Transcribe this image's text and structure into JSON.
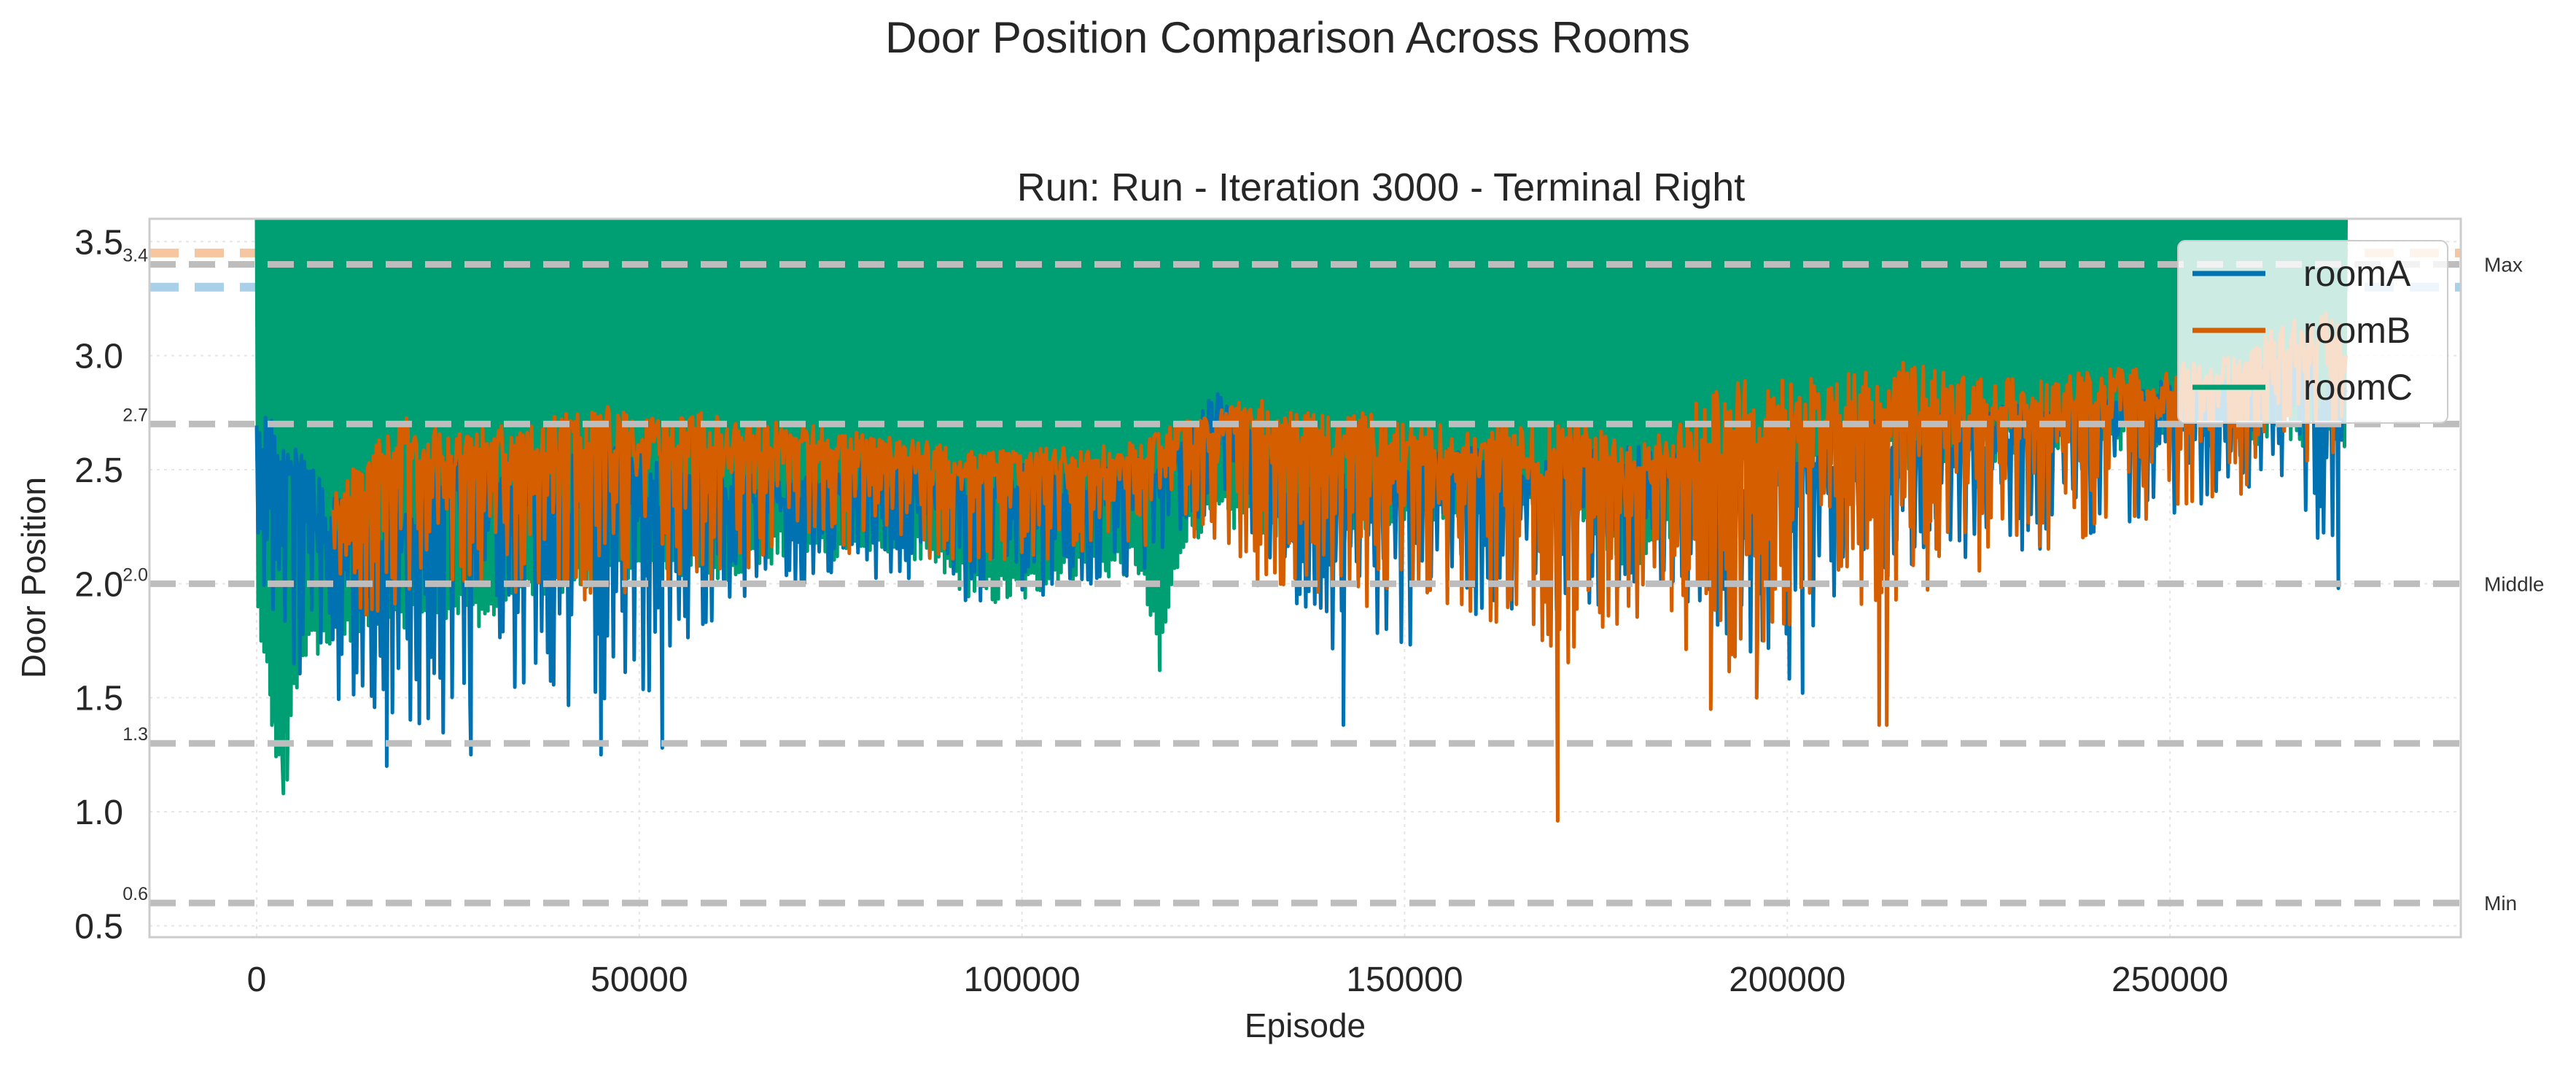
{
  "figure": {
    "suptitle": "Door Position Comparison Across Rooms"
  },
  "chart_data": {
    "type": "line",
    "title": "Run: Run - Iteration 3000 - Terminal Right",
    "xlabel": "Episode",
    "ylabel": "Door Position",
    "xlim": [
      -14000,
      288000
    ],
    "ylim": [
      0.45,
      3.6
    ],
    "grid": true,
    "legend_position": "top-right",
    "x_ticks": [
      0,
      50000,
      100000,
      150000,
      200000,
      250000
    ],
    "y_ticks": [
      0.5,
      1.0,
      1.5,
      2.0,
      2.5,
      3.0,
      3.5
    ],
    "x_tick_labels": [
      "0",
      "50000",
      "100000",
      "150000",
      "200000",
      "250000"
    ],
    "y_tick_labels": [
      "0.5",
      "1.0",
      "1.5",
      "2.0",
      "2.5",
      "3.0",
      "3.5"
    ],
    "reference_lines": [
      {
        "y": 3.4,
        "left_label": "3.4",
        "right_label": "Max"
      },
      {
        "y": 2.7,
        "left_label": "2.7",
        "right_label": ""
      },
      {
        "y": 2.0,
        "left_label": "2.0",
        "right_label": "Middle"
      },
      {
        "y": 1.3,
        "left_label": "1.3",
        "right_label": ""
      },
      {
        "y": 0.6,
        "left_label": "0.6",
        "right_label": "Min"
      }
    ],
    "faint_lines": [
      {
        "y": 3.45,
        "color": "#f5c6a0"
      },
      {
        "y": 3.3,
        "color": "#a8d0e8"
      }
    ],
    "x_max": 273000,
    "series": [
      {
        "name": "roomA",
        "color": "#0072b2",
        "envelope": [
          [
            0,
            1.9,
            2.8
          ],
          [
            5000,
            1.6,
            2.6
          ],
          [
            10000,
            1.5,
            2.4
          ],
          [
            15000,
            1.45,
            2.3
          ],
          [
            20000,
            1.4,
            2.5
          ],
          [
            25000,
            1.3,
            2.6
          ],
          [
            30000,
            1.45,
            2.6
          ],
          [
            35000,
            1.55,
            2.6
          ],
          [
            40000,
            1.4,
            2.55
          ],
          [
            45000,
            1.5,
            2.6
          ],
          [
            50000,
            1.45,
            2.65
          ],
          [
            55000,
            1.7,
            2.5
          ],
          [
            60000,
            1.85,
            2.5
          ],
          [
            65000,
            1.95,
            2.5
          ],
          [
            70000,
            2.0,
            2.45
          ],
          [
            75000,
            2.0,
            2.5
          ],
          [
            80000,
            2.0,
            2.55
          ],
          [
            85000,
            2.0,
            2.55
          ],
          [
            90000,
            1.95,
            2.5
          ],
          [
            95000,
            1.9,
            2.5
          ],
          [
            100000,
            1.95,
            2.55
          ],
          [
            105000,
            1.95,
            2.5
          ],
          [
            110000,
            2.0,
            2.5
          ],
          [
            115000,
            2.0,
            2.55
          ],
          [
            120000,
            2.2,
            2.6
          ],
          [
            125000,
            2.3,
            2.85
          ],
          [
            130000,
            2.2,
            2.7
          ],
          [
            135000,
            1.95,
            2.5
          ],
          [
            140000,
            1.7,
            2.5
          ],
          [
            145000,
            1.8,
            2.55
          ],
          [
            150000,
            1.7,
            2.55
          ],
          [
            155000,
            1.9,
            2.6
          ],
          [
            160000,
            1.85,
            2.6
          ],
          [
            165000,
            1.9,
            2.55
          ],
          [
            170000,
            1.85,
            2.55
          ],
          [
            175000,
            1.9,
            2.6
          ],
          [
            180000,
            1.95,
            2.6
          ],
          [
            185000,
            2.0,
            2.6
          ],
          [
            190000,
            1.8,
            2.6
          ],
          [
            195000,
            1.7,
            2.6
          ],
          [
            200000,
            1.55,
            2.6
          ],
          [
            205000,
            1.9,
            2.7
          ],
          [
            210000,
            2.0,
            2.7
          ],
          [
            215000,
            2.05,
            2.75
          ],
          [
            220000,
            2.1,
            2.75
          ],
          [
            225000,
            2.1,
            2.75
          ],
          [
            230000,
            2.1,
            2.8
          ],
          [
            235000,
            2.15,
            2.8
          ],
          [
            240000,
            2.2,
            2.8
          ],
          [
            245000,
            2.25,
            2.85
          ],
          [
            250000,
            2.3,
            2.9
          ],
          [
            255000,
            2.35,
            2.9
          ],
          [
            260000,
            2.4,
            2.95
          ],
          [
            265000,
            2.45,
            3.0
          ],
          [
            270000,
            2.0,
            3.0
          ],
          [
            273000,
            2.4,
            2.9
          ]
        ],
        "spikes": [
          [
            17000,
            1.2
          ],
          [
            28000,
            1.25
          ],
          [
            45000,
            1.25
          ],
          [
            53000,
            1.28
          ],
          [
            142000,
            1.38
          ],
          [
            202000,
            1.52
          ],
          [
            272000,
            1.98
          ]
        ]
      },
      {
        "name": "roomB",
        "color": "#d55e00",
        "envelope": [
          [
            10000,
            1.95,
            2.4
          ],
          [
            15000,
            1.85,
            2.6
          ],
          [
            20000,
            1.95,
            2.75
          ],
          [
            25000,
            2.0,
            2.65
          ],
          [
            30000,
            2.0,
            2.7
          ],
          [
            35000,
            1.95,
            2.7
          ],
          [
            40000,
            2.0,
            2.75
          ],
          [
            45000,
            1.85,
            2.8
          ],
          [
            50000,
            1.95,
            2.75
          ],
          [
            55000,
            2.0,
            2.75
          ],
          [
            60000,
            2.0,
            2.75
          ],
          [
            65000,
            2.05,
            2.75
          ],
          [
            70000,
            2.1,
            2.7
          ],
          [
            75000,
            2.15,
            2.7
          ],
          [
            80000,
            2.1,
            2.65
          ],
          [
            85000,
            2.1,
            2.65
          ],
          [
            90000,
            2.1,
            2.6
          ],
          [
            95000,
            2.1,
            2.6
          ],
          [
            100000,
            2.1,
            2.6
          ],
          [
            105000,
            2.1,
            2.6
          ],
          [
            110000,
            2.15,
            2.6
          ],
          [
            115000,
            2.15,
            2.65
          ],
          [
            120000,
            2.2,
            2.7
          ],
          [
            125000,
            2.2,
            2.75
          ],
          [
            130000,
            2.0,
            2.85
          ],
          [
            135000,
            1.95,
            2.8
          ],
          [
            140000,
            1.95,
            2.75
          ],
          [
            145000,
            1.9,
            2.75
          ],
          [
            150000,
            1.95,
            2.7
          ],
          [
            155000,
            1.9,
            2.7
          ],
          [
            160000,
            1.85,
            2.7
          ],
          [
            165000,
            1.8,
            2.7
          ],
          [
            170000,
            1.6,
            2.7
          ],
          [
            175000,
            1.75,
            2.7
          ],
          [
            180000,
            1.8,
            2.6
          ],
          [
            185000,
            1.8,
            2.75
          ],
          [
            190000,
            1.55,
            2.85
          ],
          [
            195000,
            1.65,
            2.9
          ],
          [
            200000,
            1.75,
            2.9
          ],
          [
            205000,
            1.9,
            2.9
          ],
          [
            210000,
            1.75,
            2.95
          ],
          [
            215000,
            1.9,
            3.0
          ],
          [
            220000,
            1.95,
            2.95
          ],
          [
            225000,
            2.0,
            2.9
          ],
          [
            230000,
            2.1,
            2.9
          ],
          [
            235000,
            2.15,
            2.9
          ],
          [
            240000,
            2.2,
            2.95
          ],
          [
            245000,
            2.25,
            2.95
          ],
          [
            250000,
            2.3,
            2.95
          ],
          [
            255000,
            2.35,
            3.0
          ],
          [
            260000,
            2.4,
            3.05
          ],
          [
            265000,
            2.5,
            3.15
          ],
          [
            270000,
            2.55,
            3.2
          ],
          [
            273000,
            2.6,
            3.1
          ]
        ],
        "spikes": [
          [
            170000,
            0.96
          ],
          [
            190000,
            1.45
          ],
          [
            212000,
            1.38
          ],
          [
            213000,
            1.38
          ],
          [
            196000,
            1.5
          ]
        ]
      },
      {
        "name": "roomC",
        "color": "#009e73",
        "envelope": [
          [
            0,
            1.85,
            3.6
          ],
          [
            3000,
            1.1,
            3.6
          ],
          [
            6000,
            1.65,
            3.6
          ],
          [
            10000,
            1.7,
            3.6
          ],
          [
            15000,
            1.75,
            3.6
          ],
          [
            20000,
            1.8,
            3.6
          ],
          [
            25000,
            1.85,
            3.6
          ],
          [
            30000,
            1.8,
            3.6
          ],
          [
            35000,
            1.9,
            3.6
          ],
          [
            40000,
            1.95,
            3.6
          ],
          [
            45000,
            1.95,
            3.6
          ],
          [
            50000,
            2.0,
            3.6
          ],
          [
            55000,
            2.0,
            3.6
          ],
          [
            60000,
            2.0,
            3.6
          ],
          [
            65000,
            2.05,
            3.6
          ],
          [
            70000,
            2.1,
            3.6
          ],
          [
            75000,
            2.1,
            3.6
          ],
          [
            80000,
            2.1,
            3.6
          ],
          [
            85000,
            2.1,
            3.6
          ],
          [
            90000,
            2.0,
            3.6
          ],
          [
            95000,
            1.9,
            3.6
          ],
          [
            100000,
            1.9,
            3.6
          ],
          [
            105000,
            2.0,
            3.6
          ],
          [
            110000,
            2.0,
            3.6
          ],
          [
            115000,
            2.05,
            3.6
          ],
          [
            118000,
            1.62,
            3.6
          ],
          [
            121000,
            2.15,
            3.6
          ],
          [
            125000,
            2.25,
            3.6
          ],
          [
            130000,
            2.2,
            3.6
          ],
          [
            140000,
            2.2,
            3.6
          ],
          [
            150000,
            2.25,
            3.6
          ],
          [
            160000,
            2.3,
            3.6
          ],
          [
            170000,
            2.35,
            3.6
          ],
          [
            180000,
            2.0,
            3.6
          ],
          [
            190000,
            2.4,
            3.6
          ],
          [
            200000,
            2.45,
            3.6
          ],
          [
            210000,
            2.5,
            3.6
          ],
          [
            220000,
            2.5,
            3.6
          ],
          [
            230000,
            2.55,
            3.6
          ],
          [
            240000,
            2.55,
            3.6
          ],
          [
            250000,
            2.6,
            3.6
          ],
          [
            260000,
            2.6,
            3.6
          ],
          [
            273000,
            2.6,
            3.6
          ]
        ],
        "spikes": [
          [
            2000,
            1.38
          ],
          [
            3500,
            1.08
          ],
          [
            4000,
            1.14
          ],
          [
            118000,
            1.62
          ]
        ]
      }
    ]
  }
}
